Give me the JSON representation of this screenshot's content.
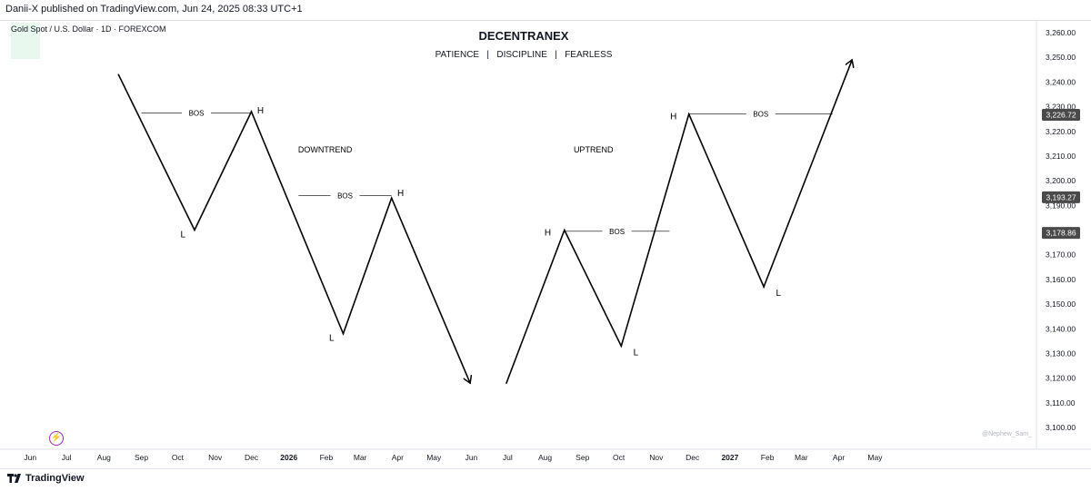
{
  "header": {
    "publish_text": "Danii-X published on TradingView.com, Jun 24, 2025 08:33 UTC+1",
    "symbol": "Gold Spot / U.S. Dollar · 1D · FOREXCOM"
  },
  "footer": {
    "brand": "TradingView",
    "watermark": "@Nephew_Sam_"
  },
  "icons": {
    "brand": "tradingview-logo-icon",
    "flash": "lightning-icon"
  },
  "colors": {
    "line": "#000000",
    "axis_text": "#131722",
    "grid": "#e0e3eb",
    "price_tag_bg": "#4a4a4a",
    "price_tag_text": "#ffffff",
    "flash_icon": "#9c27b0"
  },
  "chart_data": {
    "type": "line",
    "title": "DECENTRANEX",
    "subtitle": "PATIENCE   |   DISCIPLINE   |   FEARLESS",
    "x_ticks": [
      {
        "label": "Jun",
        "x": "2025-06-01"
      },
      {
        "label": "Jul",
        "x": "2025-07-01"
      },
      {
        "label": "Aug",
        "x": "2025-08-01"
      },
      {
        "label": "Sep",
        "x": "2025-09-01"
      },
      {
        "label": "Oct",
        "x": "2025-10-01"
      },
      {
        "label": "Nov",
        "x": "2025-11-01"
      },
      {
        "label": "Dec",
        "x": "2025-12-01"
      },
      {
        "label": "2026",
        "x": "2026-01-01",
        "bold": true
      },
      {
        "label": "Feb",
        "x": "2026-02-01"
      },
      {
        "label": "Mar",
        "x": "2026-03-01"
      },
      {
        "label": "Apr",
        "x": "2026-04-01"
      },
      {
        "label": "May",
        "x": "2026-05-01"
      },
      {
        "label": "Jun",
        "x": "2026-06-01"
      },
      {
        "label": "Jul",
        "x": "2026-07-01"
      },
      {
        "label": "Aug",
        "x": "2026-08-01"
      },
      {
        "label": "Sep",
        "x": "2026-09-01"
      },
      {
        "label": "Oct",
        "x": "2026-10-01"
      },
      {
        "label": "Nov",
        "x": "2026-11-01"
      },
      {
        "label": "Dec",
        "x": "2026-12-01"
      },
      {
        "label": "2027",
        "x": "2027-01-01",
        "bold": true
      },
      {
        "label": "Feb",
        "x": "2027-02-01"
      },
      {
        "label": "Mar",
        "x": "2027-03-01"
      },
      {
        "label": "Apr",
        "x": "2027-04-01"
      },
      {
        "label": "May",
        "x": "2027-05-01"
      }
    ],
    "y_ticks": [
      "3,260.00",
      "3,250.00",
      "3,240.00",
      "3,230.00",
      "3,220.00",
      "3,210.00",
      "3,200.00",
      "3,190.00",
      "3,180.00",
      "3,170.00",
      "3,160.00",
      "3,150.00",
      "3,140.00",
      "3,130.00",
      "3,120.00",
      "3,110.00",
      "3,100.00"
    ],
    "ylim": [
      3095,
      3265
    ],
    "xlim": [
      "2025-05-16",
      "2027-05-24"
    ],
    "price_tags": [
      {
        "label": "3,226.72",
        "y": 3226.72
      },
      {
        "label": "3,193.27",
        "y": 3193.27
      },
      {
        "label": "3,178.86",
        "y": 3178.86
      }
    ],
    "series": [
      {
        "points": [
          {
            "x": "2025-08-13",
            "y": 3243
          },
          {
            "x": "2025-10-15",
            "y": 3180
          },
          {
            "x": "2025-12-01",
            "y": 3228
          },
          {
            "x": "2026-02-15",
            "y": 3138
          },
          {
            "x": "2026-03-27",
            "y": 3193
          },
          {
            "x": "2026-05-31",
            "y": 3118
          }
        ],
        "arrow_end": true
      },
      {
        "points": [
          {
            "x": "2026-06-30",
            "y": 3118
          },
          {
            "x": "2026-08-17",
            "y": 3180
          },
          {
            "x": "2026-10-03",
            "y": 3133
          },
          {
            "x": "2026-11-28",
            "y": 3227
          },
          {
            "x": "2027-01-29",
            "y": 3157
          },
          {
            "x": "2027-04-12",
            "y": 3249
          }
        ],
        "arrow_end": true
      }
    ],
    "bos_lines": [
      {
        "x1": "2025-09-01",
        "x2": "2025-12-01",
        "y": 3227.5,
        "label": "BOS"
      },
      {
        "x1": "2026-01-09",
        "x2": "2026-03-27",
        "y": 3194,
        "label": "BOS"
      },
      {
        "x1": "2026-08-17",
        "x2": "2026-11-12",
        "y": 3179.5,
        "label": "BOS"
      },
      {
        "x1": "2026-11-28",
        "x2": "2027-03-27",
        "y": 3227,
        "label": "BOS"
      }
    ],
    "point_labels": [
      {
        "text": "H",
        "x": "2025-12-05",
        "y": 3228,
        "pos": "right"
      },
      {
        "text": "L",
        "x": "2025-10-15",
        "y": 3180,
        "pos": "left-below"
      },
      {
        "text": "H",
        "x": "2026-03-31",
        "y": 3194.5,
        "pos": "right"
      },
      {
        "text": "L",
        "x": "2026-02-15",
        "y": 3138,
        "pos": "left-below"
      },
      {
        "text": "H",
        "x": "2026-08-12",
        "y": 3180,
        "pos": "left"
      },
      {
        "text": "L",
        "x": "2026-10-07",
        "y": 3133,
        "pos": "right-below"
      },
      {
        "text": "H",
        "x": "2026-11-24",
        "y": 3227,
        "pos": "left"
      },
      {
        "text": "L",
        "x": "2027-02-02",
        "y": 3157,
        "pos": "right-below"
      }
    ],
    "annotations": [
      {
        "text": "DOWNTREND",
        "x": "2026-01-31",
        "y": 3213
      },
      {
        "text": "UPTREND",
        "x": "2026-09-10",
        "y": 3213
      }
    ],
    "grid": false
  }
}
